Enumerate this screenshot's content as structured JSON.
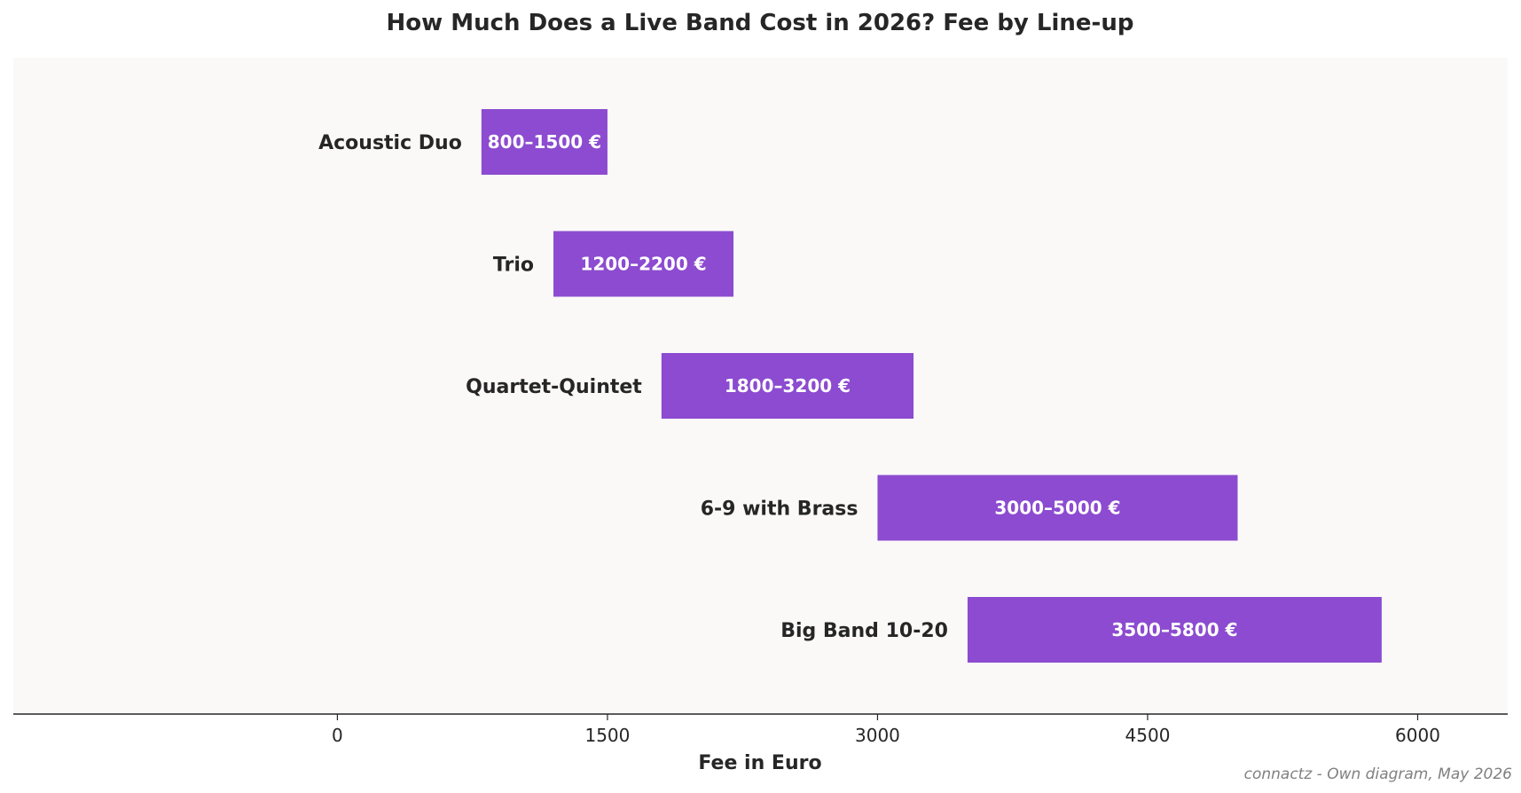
{
  "chart_data": {
    "type": "bar",
    "orientation": "horizontal",
    "title": "How Much Does a Live Band Cost in 2026? Fee by Line-up",
    "xlabel": "Fee in Euro",
    "ylabel": "",
    "xlim": [
      -1800,
      6500
    ],
    "xticks": [
      0,
      1500,
      3000,
      4500,
      6000
    ],
    "grid": false,
    "categories": [
      "Acoustic Duo",
      "Trio",
      "Quartet-Quintet",
      "6-9 with Brass",
      "Big Band 10-20"
    ],
    "ranges": [
      {
        "category": "Acoustic Duo",
        "min": 800,
        "max": 1500,
        "label": "800–1500 €"
      },
      {
        "category": "Trio",
        "min": 1200,
        "max": 2200,
        "label": "1200–2200 €"
      },
      {
        "category": "Quartet-Quintet",
        "min": 1800,
        "max": 3200,
        "label": "1800–3200 €"
      },
      {
        "category": "6-9 with Brass",
        "min": 3000,
        "max": 5000,
        "label": "3000–5000 €"
      },
      {
        "category": "Big Band 10-20",
        "min": 3500,
        "max": 5800,
        "label": "3500–5800 €"
      }
    ],
    "source": "connactz - Own diagram, May 2026",
    "colors": {
      "bar": "#8c4bd0",
      "plot_background": "#faf9f8",
      "text": "#262626",
      "source": "#808080"
    }
  }
}
